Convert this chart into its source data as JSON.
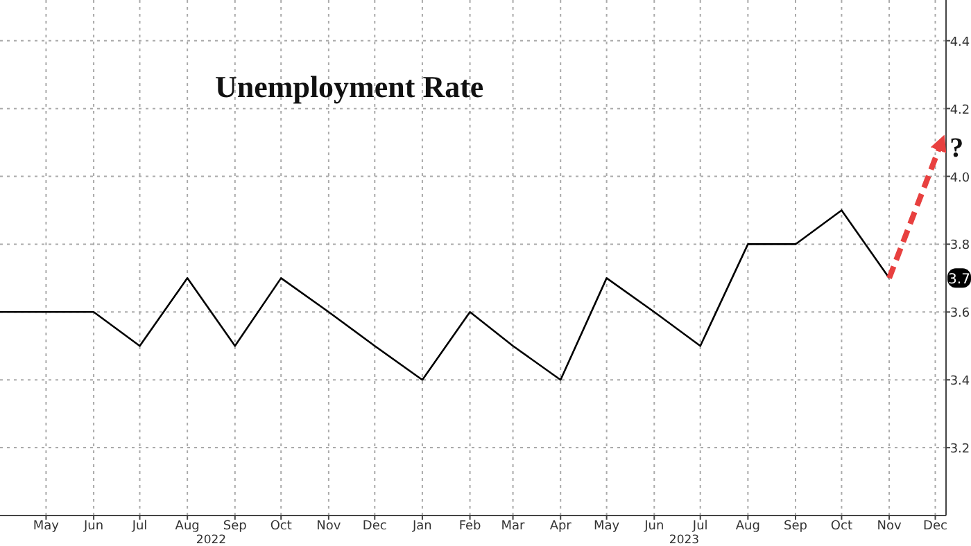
{
  "chart_data": {
    "type": "line",
    "title": "Unemployment Rate",
    "series": [
      {
        "color": "#000000",
        "x": [
          "2022-04",
          "2022-05",
          "2022-06",
          "2022-07",
          "2022-08",
          "2022-09",
          "2022-10",
          "2022-11",
          "2022-12",
          "2023-01",
          "2023-02",
          "2023-03",
          "2023-04",
          "2023-05",
          "2023-06",
          "2023-07",
          "2023-08",
          "2023-09",
          "2023-10",
          "2023-11"
        ],
        "values": [
          3.6,
          3.6,
          3.6,
          3.5,
          3.7,
          3.5,
          3.7,
          3.6,
          3.5,
          3.4,
          3.6,
          3.5,
          3.4,
          3.7,
          3.6,
          3.5,
          3.8,
          3.8,
          3.9,
          3.7
        ]
      },
      {
        "color": "#e8403f",
        "line_style": "dashed",
        "x": [
          "2023-11",
          "2023-12-05"
        ],
        "values": [
          3.7,
          4.1
        ]
      }
    ],
    "xlim": [
      "2022-04-01",
      "2023-12-08"
    ],
    "xticks": [
      {
        "value": "2022-05",
        "label": "May"
      },
      {
        "value": "2022-06",
        "label": "Jun"
      },
      {
        "value": "2022-07",
        "label": "Jul"
      },
      {
        "value": "2022-08",
        "label": "Aug"
      },
      {
        "value": "2022-09",
        "label": "Sep"
      },
      {
        "value": "2022-10",
        "label": "Oct"
      },
      {
        "value": "2022-11",
        "label": "Nov"
      },
      {
        "value": "2022-12",
        "label": "Dec"
      },
      {
        "value": "2023-01",
        "label": "Jan"
      },
      {
        "value": "2023-02",
        "label": "Feb"
      },
      {
        "value": "2023-03",
        "label": "Mar"
      },
      {
        "value": "2023-04",
        "label": "Apr"
      },
      {
        "value": "2023-05",
        "label": "May"
      },
      {
        "value": "2023-06",
        "label": "Jun"
      },
      {
        "value": "2023-07",
        "label": "Jul"
      },
      {
        "value": "2023-08",
        "label": "Aug"
      },
      {
        "value": "2023-09",
        "label": "Sep"
      },
      {
        "value": "2023-10",
        "label": "Oct"
      },
      {
        "value": "2023-11",
        "label": "Nov"
      },
      {
        "value": "2023-12",
        "label": "Dec"
      }
    ],
    "ylim": [
      3.0,
      4.52
    ],
    "yticks": [
      3.2,
      3.4,
      3.6,
      3.8,
      {
        "value": 4.0,
        "label": "4.0"
      },
      4.2,
      4.4
    ],
    "grid": true,
    "marker": "none",
    "annotations": [
      "?",
      "3.7",
      "2022",
      "2023"
    ]
  }
}
